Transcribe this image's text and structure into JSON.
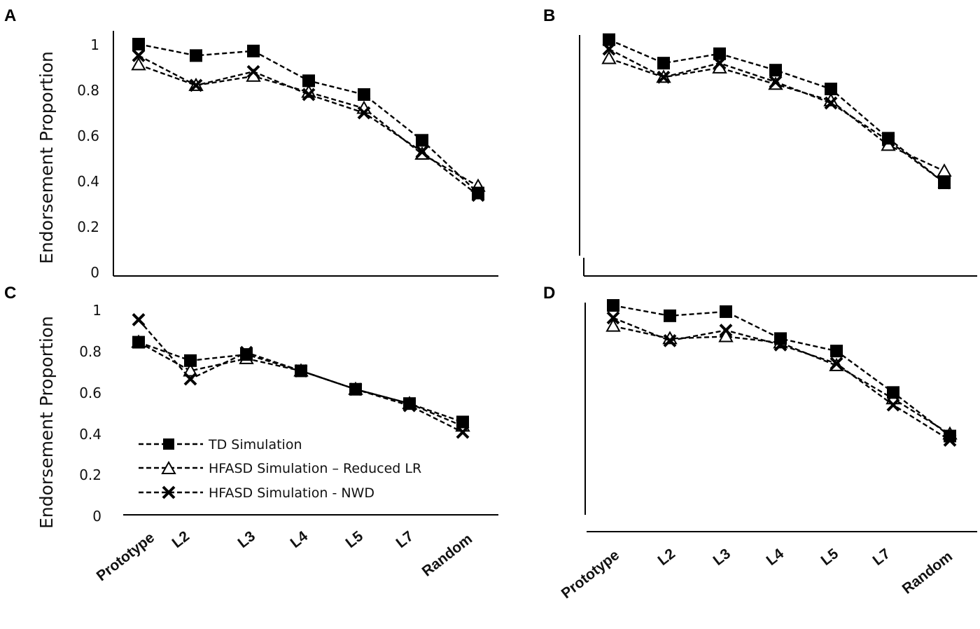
{
  "chart_data": [
    {
      "panel": "A",
      "type": "line",
      "categories": [
        "Prototype",
        "L2",
        "L3",
        "L4",
        "L5",
        "L7",
        "Random"
      ],
      "ylabel": "Endorsement Proportion",
      "yticks": [
        "0",
        "0.2",
        "0.4",
        "0.6",
        "0.8",
        "1"
      ],
      "ylim": [
        0,
        1
      ],
      "series": [
        {
          "name": "TD Simulation",
          "marker": "square",
          "values": [
            1.0,
            0.95,
            0.97,
            0.84,
            0.78,
            0.58,
            0.35
          ]
        },
        {
          "name": "HFASD Simulation – Reduced LR",
          "marker": "triangle",
          "values": [
            0.91,
            0.82,
            0.86,
            0.79,
            0.72,
            0.52,
            0.38
          ]
        },
        {
          "name": "HFASD Simulation - NWD",
          "marker": "x",
          "values": [
            0.95,
            0.82,
            0.88,
            0.78,
            0.7,
            0.53,
            0.34
          ]
        }
      ]
    },
    {
      "panel": "B",
      "type": "line",
      "categories": [
        "Prototype",
        "L2",
        "L3",
        "L4",
        "L5",
        "L7",
        "Random"
      ],
      "ylim": [
        0,
        1
      ],
      "series": [
        {
          "name": "TD Simulation",
          "marker": "square",
          "values": [
            1.01,
            0.91,
            0.95,
            0.88,
            0.8,
            0.59,
            0.4
          ]
        },
        {
          "name": "HFASD Simulation – Reduced LR",
          "marker": "triangle",
          "values": [
            0.93,
            0.85,
            0.89,
            0.82,
            0.75,
            0.56,
            0.45
          ]
        },
        {
          "name": "HFASD Simulation - NWD",
          "marker": "x",
          "values": [
            0.97,
            0.85,
            0.91,
            0.83,
            0.74,
            0.58,
            0.4
          ]
        }
      ]
    },
    {
      "panel": "C",
      "type": "line",
      "categories": [
        "Prototype",
        "L2",
        "L3",
        "L4",
        "L5",
        "L7",
        "Random"
      ],
      "ylabel": "Endorsement Proportion",
      "yticks": [
        "0",
        "0.2",
        "0.4",
        "0.6",
        "0.8",
        "1"
      ],
      "ylim": [
        0,
        1
      ],
      "series": [
        {
          "name": "TD Simulation",
          "marker": "square",
          "values": [
            0.82,
            0.73,
            0.76,
            0.68,
            0.59,
            0.52,
            0.43
          ]
        },
        {
          "name": "HFASD Simulation – Reduced LR",
          "marker": "triangle",
          "values": [
            0.82,
            0.68,
            0.74,
            0.68,
            0.59,
            0.52,
            0.41
          ]
        },
        {
          "name": "HFASD Simulation - NWD",
          "marker": "x",
          "values": [
            0.93,
            0.64,
            0.77,
            0.68,
            0.59,
            0.51,
            0.38
          ]
        }
      ]
    },
    {
      "panel": "D",
      "type": "line",
      "categories": [
        "Prototype",
        "L2",
        "L3",
        "L4",
        "L5",
        "L7",
        "Random"
      ],
      "ylim": [
        0,
        1
      ],
      "series": [
        {
          "name": "TD Simulation",
          "marker": "square",
          "values": [
            1.01,
            0.96,
            0.98,
            0.85,
            0.79,
            0.59,
            0.38
          ]
        },
        {
          "name": "HFASD Simulation – Reduced LR",
          "marker": "triangle",
          "values": [
            0.91,
            0.85,
            0.86,
            0.83,
            0.72,
            0.56,
            0.39
          ]
        },
        {
          "name": "HFASD Simulation - NWD",
          "marker": "x",
          "values": [
            0.95,
            0.84,
            0.89,
            0.82,
            0.73,
            0.53,
            0.36
          ]
        }
      ]
    }
  ],
  "legend": {
    "entries": [
      "TD Simulation",
      "HFASD Simulation – Reduced LR",
      "HFASD Simulation - NWD"
    ]
  }
}
